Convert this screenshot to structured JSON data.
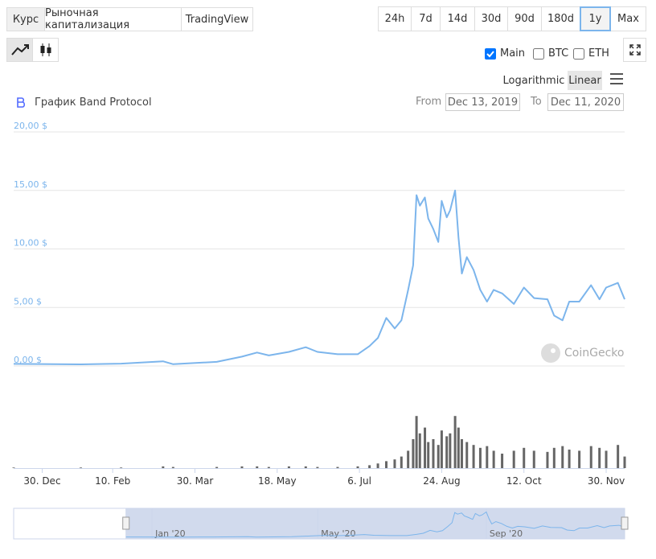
{
  "ui": {
    "tabs": [
      "Курс",
      "Рыночная капитализация",
      "TradingView"
    ],
    "active_tab": "Курс",
    "ranges": [
      "24h",
      "7d",
      "14d",
      "30d",
      "90d",
      "180d",
      "1y",
      "Max"
    ],
    "active_range": "1y",
    "toggles": [
      {
        "label": "Main",
        "checked": true
      },
      {
        "label": "BTC",
        "checked": false
      },
      {
        "label": "ETH",
        "checked": false
      }
    ],
    "scales": [
      "Logarithmic",
      "Linear"
    ],
    "active_scale": "Linear",
    "from_label": "From",
    "from": "Dec 13, 2019",
    "to_label": "To",
    "to": "Dec 11, 2020",
    "watermark": "CoinGecko"
  },
  "chart_data": {
    "type": "line",
    "title": "График Band Protocol",
    "color": "#7cb5ec",
    "x": [
      "2019-12-13",
      "2020-01-22",
      "2020-02-15",
      "2020-03-11",
      "2020-03-17",
      "2020-04-12",
      "2020-04-27",
      "2020-05-06",
      "2020-05-13",
      "2020-05-25",
      "2020-06-04",
      "2020-06-11",
      "2020-06-23",
      "2020-07-05",
      "2020-07-12",
      "2020-07-17",
      "2020-07-22",
      "2020-07-27",
      "2020-07-31",
      "2020-08-04",
      "2020-08-07",
      "2020-08-09",
      "2020-08-11",
      "2020-08-14",
      "2020-08-16",
      "2020-08-19",
      "2020-08-22",
      "2020-08-24",
      "2020-08-27",
      "2020-08-29",
      "2020-09-01",
      "2020-09-03",
      "2020-09-05",
      "2020-09-08",
      "2020-09-12",
      "2020-09-16",
      "2020-09-20",
      "2020-09-24",
      "2020-09-29",
      "2020-10-06",
      "2020-10-12",
      "2020-10-18",
      "2020-10-26",
      "2020-10-30",
      "2020-11-04",
      "2020-11-08",
      "2020-11-14",
      "2020-11-21",
      "2020-11-26",
      "2020-11-30",
      "2020-12-07",
      "2020-12-11"
    ],
    "values": [
      0.18,
      0.14,
      0.2,
      0.4,
      0.15,
      0.35,
      0.8,
      1.15,
      0.9,
      1.2,
      1.6,
      1.2,
      1.0,
      1.0,
      1.7,
      2.4,
      4.1,
      3.2,
      3.9,
      6.5,
      8.6,
      14.6,
      13.7,
      14.4,
      12.6,
      11.7,
      10.6,
      14.1,
      12.7,
      13.3,
      15.0,
      11.0,
      7.9,
      9.3,
      8.2,
      6.5,
      5.5,
      6.5,
      6.2,
      5.3,
      6.7,
      5.8,
      5.7,
      4.3,
      3.9,
      5.5,
      5.5,
      6.9,
      5.7,
      6.7,
      7.1,
      5.7
    ],
    "xlim": [
      "2019-12-13",
      "2020-12-11"
    ],
    "xticks": [
      {
        "value": "2019-12-30",
        "label": "30. Dec"
      },
      {
        "value": "2020-02-10",
        "label": "10. Feb"
      },
      {
        "value": "2020-03-30",
        "label": "30. Mar"
      },
      {
        "value": "2020-05-18",
        "label": "18. May"
      },
      {
        "value": "2020-07-06",
        "label": "6. Jul"
      },
      {
        "value": "2020-08-24",
        "label": "24. Aug"
      },
      {
        "value": "2020-10-12",
        "label": "12. Oct"
      },
      {
        "value": "2020-11-30",
        "label": "30. Nov"
      }
    ],
    "ylim": [
      0,
      20
    ],
    "yticks": [
      {
        "value": 0,
        "label": "0,00 $"
      },
      {
        "value": 5,
        "label": "5,00 $"
      },
      {
        "value": 10,
        "label": "10,00 $"
      },
      {
        "value": 15,
        "label": "15,00 $"
      },
      {
        "value": 20,
        "label": "20,00 $"
      }
    ],
    "grid": true,
    "volume": {
      "color": "#666666",
      "ylim": [
        0,
        100
      ],
      "values": [
        1,
        1,
        1,
        3,
        2,
        2,
        3,
        3,
        2,
        3,
        3,
        2,
        2,
        3,
        5,
        8,
        12,
        15,
        20,
        30,
        50,
        90,
        60,
        70,
        45,
        50,
        40,
        65,
        55,
        60,
        90,
        70,
        50,
        45,
        40,
        35,
        38,
        30,
        25,
        30,
        35,
        30,
        28,
        35,
        38,
        32,
        30,
        38,
        35,
        30,
        40,
        20
      ]
    },
    "navigator": {
      "xlim": [
        "2019-09-22",
        "2020-12-11"
      ],
      "xticks": [
        {
          "value": "2020-01-01",
          "label": "Jan '20"
        },
        {
          "value": "2020-05-01",
          "label": "May '20"
        },
        {
          "value": "2020-09-01",
          "label": "Sep '20"
        }
      ]
    }
  }
}
